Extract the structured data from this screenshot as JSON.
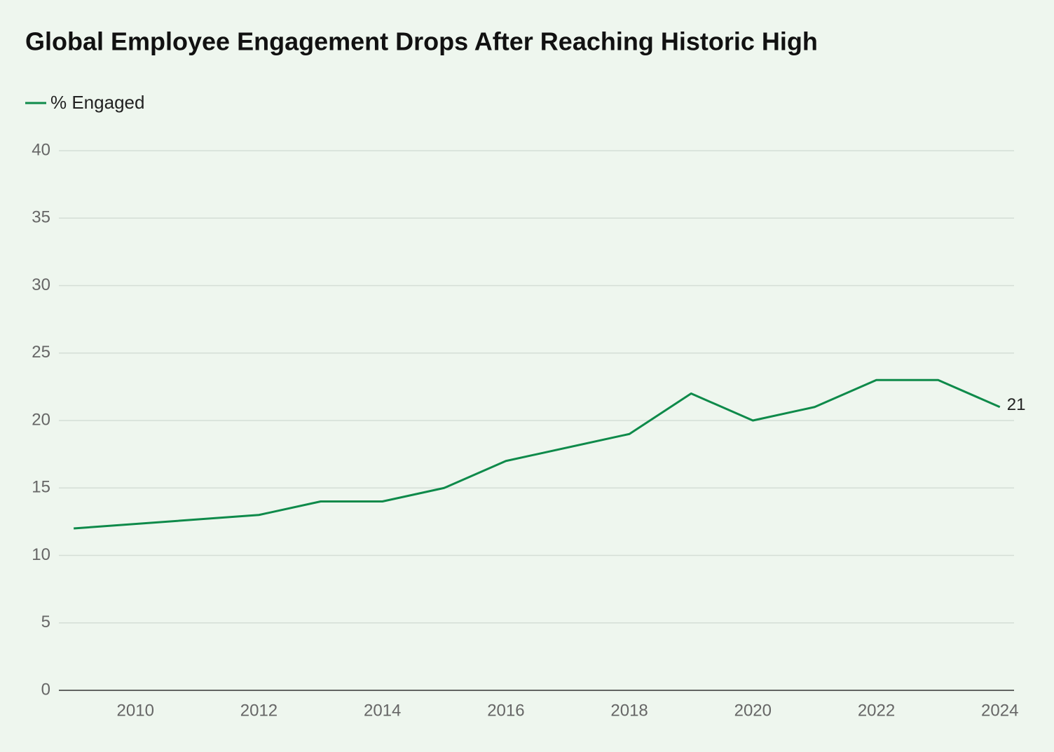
{
  "chart_data": {
    "type": "line",
    "title": "Global Employee Engagement Drops After Reaching Historic High",
    "x": [
      2009,
      2012,
      2013,
      2014,
      2015,
      2016,
      2018,
      2019,
      2020,
      2021,
      2022,
      2023,
      2024
    ],
    "series": [
      {
        "name": "% Engaged",
        "color": "#0e8a4a",
        "values": [
          12,
          13,
          14,
          14,
          15,
          17,
          19,
          22,
          20,
          21,
          23,
          23,
          21
        ]
      }
    ],
    "xlim": [
      2008.76,
      2024.23
    ],
    "xticks": [
      2010,
      2012,
      2014,
      2016,
      2018,
      2020,
      2022,
      2024
    ],
    "ylim": [
      0,
      40
    ],
    "yticks": [
      0,
      5,
      10,
      15,
      20,
      25,
      30,
      35,
      40
    ],
    "grid": true,
    "legend": "top-left"
  }
}
